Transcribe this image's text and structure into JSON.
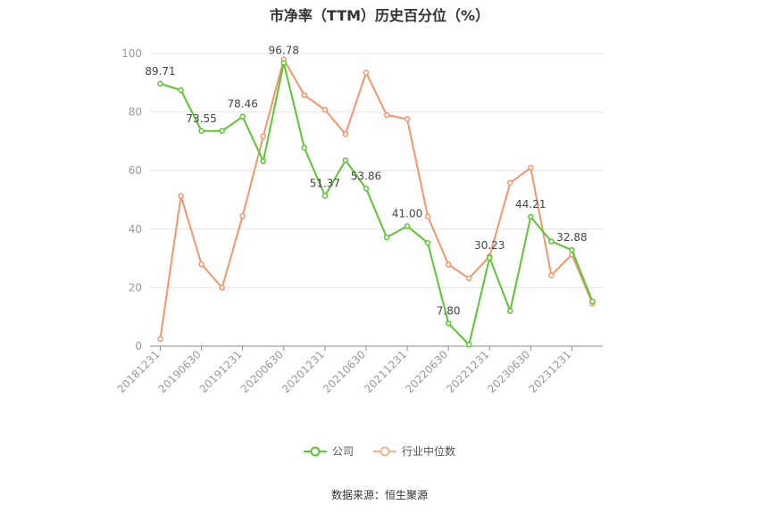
{
  "chart_data": {
    "type": "line",
    "title": "市净率（TTM）历史百分位（%）",
    "categories": [
      "20181231",
      "20190331",
      "20190630",
      "20190930",
      "20191231",
      "20200331",
      "20200630",
      "20200930",
      "20201231",
      "20210331",
      "20210630",
      "20210930",
      "20211231",
      "20220331",
      "20220630",
      "20220930",
      "20221231",
      "20230331",
      "20230630",
      "20230930",
      "20231231",
      "20240331"
    ],
    "x_tick_labels": [
      "20181231",
      "20190630",
      "20191231",
      "20200630",
      "20201231",
      "20210630",
      "20211231",
      "20220630",
      "20221231",
      "20230630",
      "20231231"
    ],
    "ylim": [
      0,
      100
    ],
    "y_ticks": [
      0,
      20,
      40,
      60,
      80,
      100
    ],
    "grid": true,
    "legend_position": "bottom",
    "series": [
      {
        "name": "公司",
        "color": "#5cc531",
        "values": [
          89.71,
          87.5,
          73.55,
          73.55,
          78.46,
          63.2,
          96.78,
          67.8,
          51.37,
          63.5,
          53.86,
          37.2,
          41.0,
          35.3,
          7.8,
          0.5,
          30.23,
          12.0,
          44.21,
          35.8,
          32.88,
          15.3
        ],
        "labels": {
          "0": "89.71",
          "2": "73.55",
          "4": "78.46",
          "6": "96.78",
          "8": "51.37",
          "10": "53.86",
          "12": "41.00",
          "14": "7.80",
          "16": "30.23",
          "18": "44.21",
          "20": "32.88"
        }
      },
      {
        "name": "行业中位数",
        "color": "#f4956a",
        "values": [
          2.5,
          51.3,
          28.0,
          20.0,
          44.5,
          71.7,
          98.0,
          85.8,
          80.8,
          72.5,
          93.5,
          79.0,
          77.6,
          44.3,
          27.9,
          23.2,
          30.7,
          55.8,
          61.0,
          24.2,
          31.3,
          14.6
        ]
      }
    ]
  },
  "legend": {
    "company": "公司",
    "industry": "行业中位数"
  },
  "source": "数据来源：恒生聚源"
}
